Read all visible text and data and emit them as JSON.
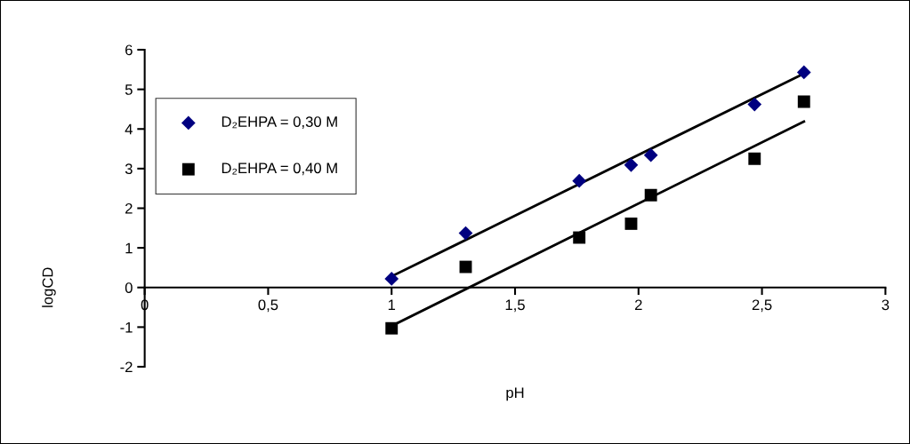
{
  "chart_data": {
    "type": "scatter",
    "xlabel": "pH",
    "ylabel": "logCD",
    "xlim": [
      0,
      3
    ],
    "ylim": [
      -2,
      6
    ],
    "xticks": [
      0,
      {
        "value": 0.5,
        "label": "0,5"
      },
      1,
      {
        "value": 1.5,
        "label": "1,5"
      },
      2,
      {
        "value": 2.5,
        "label": "2,5"
      },
      3
    ],
    "yticks": [
      -2,
      -1,
      0,
      1,
      2,
      3,
      4,
      5,
      6
    ],
    "grid": false,
    "legend": "top left",
    "series": [
      {
        "name": "D₂EHPA = 0,30 M",
        "color": "#000080",
        "marker": "diamond",
        "x": [
          1.0,
          1.3,
          1.76,
          1.97,
          2.05,
          2.47,
          2.67
        ],
        "values": [
          0.22,
          1.37,
          2.69,
          3.09,
          3.34,
          4.62,
          5.43
        ]
      },
      {
        "name": "D₂EHPA = 0,40 M",
        "color": "#000000",
        "marker": "square",
        "x": [
          1.0,
          1.3,
          1.76,
          1.97,
          2.05,
          2.47,
          2.67
        ],
        "values": [
          -1.03,
          0.52,
          1.26,
          1.61,
          2.33,
          3.25,
          4.69
        ]
      },
      {
        "type": "line",
        "color": "#000000",
        "marker": "none",
        "x": [
          1.0,
          2.67
        ],
        "values": [
          0.28,
          5.4
        ]
      },
      {
        "type": "line",
        "color": "#000000",
        "marker": "none",
        "x": [
          1.0,
          2.67
        ],
        "values": [
          -0.97,
          4.19
        ]
      }
    ]
  }
}
